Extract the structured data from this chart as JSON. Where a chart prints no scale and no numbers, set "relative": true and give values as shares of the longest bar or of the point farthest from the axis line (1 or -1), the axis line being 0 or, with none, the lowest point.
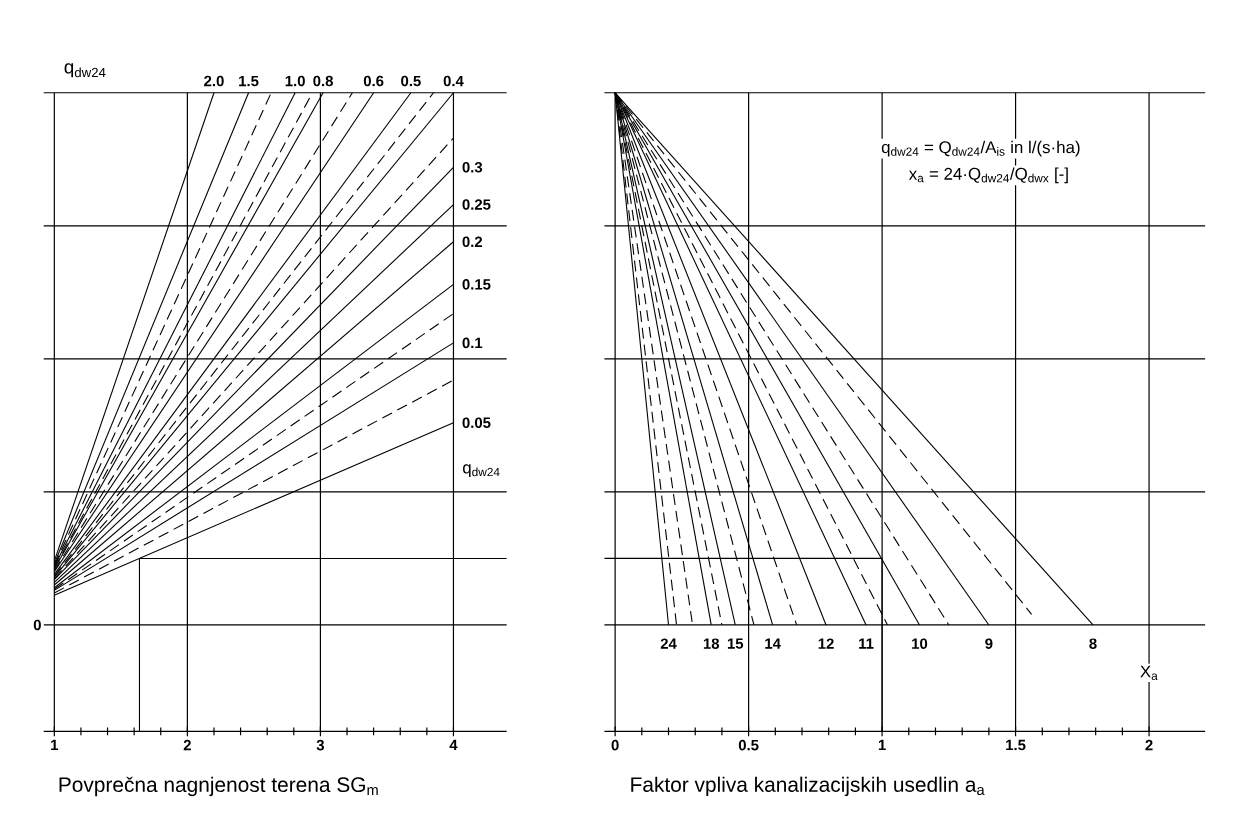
{
  "chart_data": [
    {
      "type": "line",
      "xlabel": "Povprečna nagnjenost terena SG$_{m}$",
      "ylabel": "q$_{dw24}$",
      "xlim": [
        0.92,
        4.4
      ],
      "xticks": [
        1,
        2,
        3,
        4
      ],
      "relative": true,
      "ref_lines": [
        {
          "axis": "y",
          "value": 0
        },
        {
          "axis": "y",
          "value": 0.25
        },
        {
          "axis": "y",
          "value": 0.5
        },
        {
          "axis": "y",
          "value": 0.75
        }
      ],
      "grid": "x",
      "annotations": [
        "q$_{dw24}$",
        {
          "text": "0",
          "y": 0
        }
      ],
      "series": [
        {
          "name": "2.0",
          "color": "#000000",
          "x": [
            1,
            2.2
          ],
          "values": [
            0.12,
            1
          ]
        },
        {
          "name": "1.5",
          "color": "#000000",
          "x": [
            1,
            2.46
          ],
          "values": [
            0.115,
            1
          ]
        },
        {
          "name": "1.0",
          "color": "#000000",
          "x": [
            1,
            2.81
          ],
          "values": [
            0.11,
            1
          ]
        },
        {
          "name": "0.8",
          "color": "#000000",
          "x": [
            1,
            3.02
          ],
          "values": [
            0.105,
            1
          ]
        },
        {
          "name": "0.6",
          "color": "#000000",
          "x": [
            1,
            3.4
          ],
          "values": [
            0.1,
            1
          ]
        },
        {
          "name": "0.5",
          "color": "#000000",
          "x": [
            1,
            3.68
          ],
          "values": [
            0.095,
            1
          ]
        },
        {
          "name": "0.4",
          "color": "#000000",
          "x": [
            1,
            4
          ],
          "values": [
            0.09,
            1
          ]
        },
        {
          "name": "0.3",
          "color": "#000000",
          "x": [
            1,
            4
          ],
          "values": [
            0.085,
            0.86
          ]
        },
        {
          "name": "0.25",
          "color": "#000000",
          "x": [
            1,
            4
          ],
          "values": [
            0.08,
            0.79
          ]
        },
        {
          "name": "0.2",
          "color": "#000000",
          "x": [
            1,
            4
          ],
          "values": [
            0.075,
            0.72
          ]
        },
        {
          "name": "0.15",
          "color": "#000000",
          "x": [
            1,
            4
          ],
          "values": [
            0.07,
            0.64
          ]
        },
        {
          "name": "0.1",
          "color": "#000000",
          "x": [
            1,
            4
          ],
          "values": [
            0.065,
            0.53
          ]
        },
        {
          "name": "0.05",
          "color": "#000000",
          "x": [
            1,
            4
          ],
          "values": [
            0.056,
            0.38
          ]
        },
        {
          "color": "#000000",
          "line_style": "dashed",
          "x": [
            1,
            2.63
          ],
          "values": [
            0.112,
            1
          ]
        },
        {
          "color": "#000000",
          "line_style": "dashed",
          "x": [
            1,
            2.94
          ],
          "values": [
            0.107,
            1
          ]
        },
        {
          "color": "#000000",
          "line_style": "dashed",
          "x": [
            1,
            3.24
          ],
          "values": [
            0.102,
            1
          ]
        },
        {
          "color": "#000000",
          "line_style": "dashed",
          "x": [
            1,
            3.85
          ],
          "values": [
            0.092,
            1
          ]
        },
        {
          "color": "#000000",
          "line_style": "dashed",
          "x": [
            1,
            4
          ],
          "values": [
            0.087,
            0.915
          ]
        },
        {
          "color": "#000000",
          "line_style": "dashed",
          "x": [
            1,
            4
          ],
          "values": [
            0.067,
            0.585
          ]
        },
        {
          "color": "#000000",
          "line_style": "dashed",
          "x": [
            1,
            4
          ],
          "values": [
            0.06,
            0.46
          ]
        },
        {
          "color": "#000000",
          "x": [
            1.64,
            1.64,
            4.4
          ],
          "values": [
            -0.2,
            0.125,
            0.125
          ]
        }
      ]
    },
    {
      "type": "line",
      "xlabel": "Faktor vpliva kanalizacijskih usedlin a$_{a}$",
      "xlim": [
        -0.04,
        2.21
      ],
      "xticks": [
        0,
        0.5,
        1,
        1.5,
        2
      ],
      "relative": true,
      "ref_lines": [
        {
          "axis": "y",
          "value": 0
        },
        {
          "axis": "y",
          "value": 0.25
        },
        {
          "axis": "y",
          "value": 0.5
        },
        {
          "axis": "y",
          "value": 0.75
        }
      ],
      "grid": "x",
      "annotations": [
        "q$_{dw24}$ = Q$_{dw24}$/A$_{is}$ in l/(s·ha)",
        "x$_{a}$ = 24·Q$_{dw24}$/Q$_{dwx}$ [-]",
        "X$_{a}$"
      ],
      "series": [
        {
          "name": "24",
          "color": "#000000",
          "x": [
            0,
            0.2
          ],
          "values": [
            1,
            0
          ]
        },
        {
          "name": "18",
          "color": "#000000",
          "x": [
            0,
            0.36
          ],
          "values": [
            1,
            0
          ]
        },
        {
          "name": "15",
          "color": "#000000",
          "x": [
            0,
            0.45
          ],
          "values": [
            1,
            0
          ]
        },
        {
          "name": "14",
          "color": "#000000",
          "x": [
            0,
            0.59
          ],
          "values": [
            1,
            0
          ]
        },
        {
          "name": "12",
          "color": "#000000",
          "x": [
            0,
            0.79
          ],
          "values": [
            1,
            0
          ]
        },
        {
          "name": "11",
          "color": "#000000",
          "x": [
            0,
            0.94
          ],
          "values": [
            1,
            0
          ]
        },
        {
          "name": "10",
          "color": "#000000",
          "x": [
            0,
            1.14
          ],
          "values": [
            1,
            0
          ]
        },
        {
          "name": "9",
          "color": "#000000",
          "x": [
            0,
            1.4
          ],
          "values": [
            1,
            0
          ]
        },
        {
          "name": "8",
          "color": "#000000",
          "x": [
            0,
            1.79
          ],
          "values": [
            1,
            0
          ]
        },
        {
          "color": "#000000",
          "line_style": "dashed",
          "x": [
            0,
            0.23
          ],
          "values": [
            1,
            0
          ]
        },
        {
          "color": "#000000",
          "line_style": "dashed",
          "x": [
            0,
            0.29
          ],
          "values": [
            1,
            0
          ]
        },
        {
          "color": "#000000",
          "line_style": "dashed",
          "x": [
            0,
            0.4
          ],
          "values": [
            1,
            0
          ]
        },
        {
          "color": "#000000",
          "line_style": "dashed",
          "x": [
            0,
            0.52
          ],
          "values": [
            1,
            0
          ]
        },
        {
          "color": "#000000",
          "line_style": "dashed",
          "x": [
            0,
            0.68
          ],
          "values": [
            1,
            0
          ]
        },
        {
          "color": "#000000",
          "line_style": "dashed",
          "x": [
            0,
            1.02
          ],
          "values": [
            1,
            0
          ]
        },
        {
          "color": "#000000",
          "line_style": "dashed",
          "x": [
            0,
            1.25
          ],
          "values": [
            1,
            0
          ]
        },
        {
          "color": "#000000",
          "line_style": "dashed",
          "x": [
            0,
            1.56
          ],
          "values": [
            1,
            0.02
          ]
        },
        {
          "color": "#000000",
          "x": [
            -0.04,
            1,
            1
          ],
          "values": [
            0.125,
            0.125,
            -0.2
          ]
        }
      ]
    }
  ]
}
